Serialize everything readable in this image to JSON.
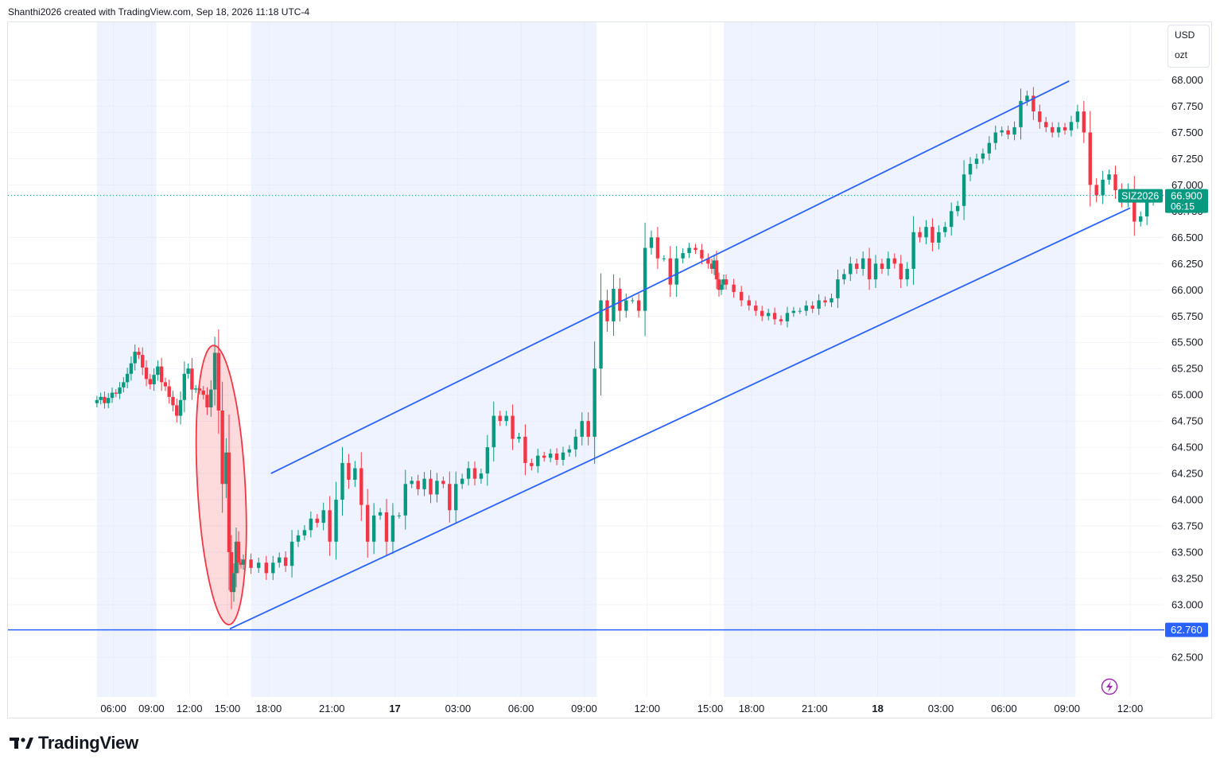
{
  "header": {
    "attribution": "Shanthi2026 created with TradingView.com, Sep 18, 2026 11:18 UTC-4"
  },
  "units": {
    "currency": "USD",
    "unit": "ozt"
  },
  "brand": {
    "name": "TradingView"
  },
  "icons": {
    "logo": "tradingview-logo-icon",
    "lightning": "lightning-icon"
  },
  "colors": {
    "up": "#089981",
    "down": "#f23645",
    "line": "#2962ff",
    "ellipse": "#f23645",
    "session": "#eef3ff"
  },
  "chart_data": {
    "type": "candlestick",
    "symbol": "SIZ2026",
    "last_price": "66.900",
    "countdown": "06:15",
    "y_ticks": [
      "62.500",
      "63.000",
      "63.250",
      "63.500",
      "63.750",
      "64.000",
      "64.250",
      "64.500",
      "64.750",
      "65.000",
      "65.250",
      "65.500",
      "65.750",
      "66.000",
      "66.250",
      "66.500",
      "67.000",
      "67.250",
      "67.500",
      "67.750",
      "68.000"
    ],
    "hidden_tick": "66.750",
    "ylim": [
      62.12,
      68.55
    ],
    "x_ticks": [
      {
        "label": "06:00",
        "t": 6,
        "bold": false
      },
      {
        "label": "09:00",
        "t": 9,
        "bold": false
      },
      {
        "label": "12:00",
        "t": 12,
        "bold": false
      },
      {
        "label": "15:00",
        "t": 15,
        "bold": false
      },
      {
        "label": "18:00",
        "t": 18,
        "bold": false
      },
      {
        "label": "21:00",
        "t": 21,
        "bold": false
      },
      {
        "label": "17",
        "t": 24,
        "bold": true
      },
      {
        "label": "03:00",
        "t": 27,
        "bold": false
      },
      {
        "label": "06:00",
        "t": 30,
        "bold": false
      },
      {
        "label": "09:00",
        "t": 33,
        "bold": false
      },
      {
        "label": "12:00",
        "t": 36,
        "bold": false
      },
      {
        "label": "15:00",
        "t": 39,
        "bold": false
      },
      {
        "label": "18:00",
        "t": 42,
        "bold": false
      },
      {
        "label": "21:00",
        "t": 45,
        "bold": false
      },
      {
        "label": "18",
        "t": 48,
        "bold": true
      },
      {
        "label": "03:00",
        "t": 51,
        "bold": false
      },
      {
        "label": "06:00",
        "t": 54,
        "bold": false
      },
      {
        "label": "09:00",
        "t": 57,
        "bold": false
      },
      {
        "label": "12:00",
        "t": 60,
        "bold": false
      }
    ],
    "x_breaks": [
      {
        "t": 0,
        "x": 47
      },
      {
        "t": 15,
        "x": 286
      },
      {
        "t": 17,
        "x": 306
      },
      {
        "t": 18,
        "x": 338
      },
      {
        "t": 39,
        "x": 893
      },
      {
        "t": 41,
        "x": 913
      },
      {
        "t": 42,
        "x": 945
      },
      {
        "t": 60,
        "x": 1421
      }
    ],
    "sessions": [
      [
        4.7,
        9.4
      ],
      [
        17.3,
        33.6
      ],
      [
        40.7,
        57.4
      ]
    ],
    "horizontal_level": {
      "price": 62.76,
      "label": "62.760"
    },
    "channel": {
      "upper": [
        {
          "t": 18.1,
          "p": 64.25
        },
        {
          "t": 57.1,
          "p": 67.99
        }
      ],
      "lower": [
        {
          "t": 15.3,
          "p": 62.77
        },
        {
          "t": 60.0,
          "p": 66.78
        }
      ]
    },
    "ellipse": {
      "start": {
        "t": 13.9,
        "p": 65.47
      },
      "end": {
        "t": 15.2,
        "p": 62.81
      }
    },
    "closes": [
      {
        "t": 4.7,
        "c": 64.95
      },
      {
        "t": 5.0,
        "c": 64.98
      },
      {
        "t": 5.3,
        "c": 64.92
      },
      {
        "t": 5.6,
        "c": 64.97
      },
      {
        "t": 5.9,
        "c": 65.02
      },
      {
        "t": 6.2,
        "c": 65.01
      },
      {
        "t": 6.5,
        "c": 65.07
      },
      {
        "t": 6.8,
        "c": 65.12
      },
      {
        "t": 7.1,
        "c": 65.2
      },
      {
        "t": 7.4,
        "c": 65.3
      },
      {
        "t": 7.7,
        "c": 65.41
      },
      {
        "t": 8.0,
        "c": 65.38
      },
      {
        "t": 8.3,
        "c": 65.26
      },
      {
        "t": 8.6,
        "c": 65.15
      },
      {
        "t": 8.9,
        "c": 65.1
      },
      {
        "t": 9.2,
        "c": 65.19
      },
      {
        "t": 9.5,
        "c": 65.27
      },
      {
        "t": 9.8,
        "c": 65.12
      },
      {
        "t": 10.1,
        "c": 65.08
      },
      {
        "t": 10.4,
        "c": 64.98
      },
      {
        "t": 10.7,
        "c": 64.9
      },
      {
        "t": 11.0,
        "c": 64.8
      },
      {
        "t": 11.3,
        "c": 64.95
      },
      {
        "t": 11.6,
        "c": 65.2
      },
      {
        "t": 11.9,
        "c": 65.25
      },
      {
        "t": 12.2,
        "c": 65.05
      },
      {
        "t": 12.5,
        "c": 65.06
      },
      {
        "t": 12.8,
        "c": 65.04
      },
      {
        "t": 13.1,
        "c": 65.0
      },
      {
        "t": 13.4,
        "c": 64.88
      },
      {
        "t": 13.7,
        "c": 65.05
      },
      {
        "t": 14.0,
        "c": 65.4
      },
      {
        "t": 14.3,
        "c": 64.85
      },
      {
        "t": 14.6,
        "c": 64.15
      },
      {
        "t": 14.9,
        "c": 64.45
      },
      {
        "t": 15.2,
        "c": 63.5
      },
      {
        "t": 15.5,
        "c": 63.12
      },
      {
        "t": 15.8,
        "c": 63.3
      },
      {
        "t": 16.1,
        "c": 63.6
      },
      {
        "t": 16.4,
        "c": 63.4
      },
      {
        "t": 16.7,
        "c": 63.38
      },
      {
        "t": 17.0,
        "c": 63.43
      },
      {
        "t": 17.3,
        "c": 63.35
      },
      {
        "t": 17.6,
        "c": 63.4
      },
      {
        "t": 17.9,
        "c": 63.3
      },
      {
        "t": 18.2,
        "c": 63.4
      },
      {
        "t": 18.5,
        "c": 63.45
      },
      {
        "t": 18.8,
        "c": 63.37
      },
      {
        "t": 19.1,
        "c": 63.6
      },
      {
        "t": 19.4,
        "c": 63.66
      },
      {
        "t": 19.7,
        "c": 63.71
      },
      {
        "t": 20.0,
        "c": 63.82
      },
      {
        "t": 20.3,
        "c": 63.78
      },
      {
        "t": 20.6,
        "c": 63.9
      },
      {
        "t": 20.9,
        "c": 63.6
      },
      {
        "t": 21.2,
        "c": 64.0
      },
      {
        "t": 21.5,
        "c": 64.35
      },
      {
        "t": 21.8,
        "c": 64.19
      },
      {
        "t": 22.1,
        "c": 64.3
      },
      {
        "t": 22.4,
        "c": 63.95
      },
      {
        "t": 22.7,
        "c": 63.6
      },
      {
        "t": 23.0,
        "c": 63.85
      },
      {
        "t": 23.3,
        "c": 63.88
      },
      {
        "t": 23.6,
        "c": 63.6
      },
      {
        "t": 23.9,
        "c": 63.85
      },
      {
        "t": 24.2,
        "c": 63.85
      },
      {
        "t": 24.5,
        "c": 64.15
      },
      {
        "t": 24.8,
        "c": 64.18
      },
      {
        "t": 25.1,
        "c": 64.1
      },
      {
        "t": 25.4,
        "c": 64.2
      },
      {
        "t": 25.7,
        "c": 64.05
      },
      {
        "t": 26.0,
        "c": 64.18
      },
      {
        "t": 26.3,
        "c": 64.15
      },
      {
        "t": 26.6,
        "c": 63.9
      },
      {
        "t": 26.9,
        "c": 64.15
      },
      {
        "t": 27.2,
        "c": 64.2
      },
      {
        "t": 27.5,
        "c": 64.3
      },
      {
        "t": 27.8,
        "c": 64.2
      },
      {
        "t": 28.1,
        "c": 64.25
      },
      {
        "t": 28.4,
        "c": 64.5
      },
      {
        "t": 28.7,
        "c": 64.8
      },
      {
        "t": 29.0,
        "c": 64.75
      },
      {
        "t": 29.3,
        "c": 64.8
      },
      {
        "t": 29.6,
        "c": 64.58
      },
      {
        "t": 29.9,
        "c": 64.6
      },
      {
        "t": 30.2,
        "c": 64.35
      },
      {
        "t": 30.5,
        "c": 64.32
      },
      {
        "t": 30.8,
        "c": 64.42
      },
      {
        "t": 31.1,
        "c": 64.4
      },
      {
        "t": 31.4,
        "c": 64.44
      },
      {
        "t": 31.7,
        "c": 64.38
      },
      {
        "t": 32.0,
        "c": 64.45
      },
      {
        "t": 32.3,
        "c": 64.48
      },
      {
        "t": 32.6,
        "c": 64.6
      },
      {
        "t": 32.9,
        "c": 64.75
      },
      {
        "t": 33.2,
        "c": 64.6
      },
      {
        "t": 33.5,
        "c": 65.25
      },
      {
        "t": 33.8,
        "c": 65.9
      },
      {
        "t": 34.1,
        "c": 65.7
      },
      {
        "t": 34.4,
        "c": 66.01
      },
      {
        "t": 34.7,
        "c": 65.8
      },
      {
        "t": 35.0,
        "c": 65.9
      },
      {
        "t": 35.3,
        "c": 65.9
      },
      {
        "t": 35.6,
        "c": 65.8
      },
      {
        "t": 35.9,
        "c": 66.4
      },
      {
        "t": 36.2,
        "c": 66.5
      },
      {
        "t": 36.5,
        "c": 66.3
      },
      {
        "t": 36.8,
        "c": 66.3
      },
      {
        "t": 37.1,
        "c": 66.05
      },
      {
        "t": 37.4,
        "c": 66.3
      },
      {
        "t": 37.7,
        "c": 66.35
      },
      {
        "t": 38.0,
        "c": 66.4
      },
      {
        "t": 38.3,
        "c": 66.38
      },
      {
        "t": 38.6,
        "c": 66.3
      },
      {
        "t": 38.9,
        "c": 66.25
      },
      {
        "t": 39.2,
        "c": 66.2
      },
      {
        "t": 39.5,
        "c": 66.28
      },
      {
        "t": 39.8,
        "c": 66.1
      },
      {
        "t": 40.1,
        "c": 66.0
      },
      {
        "t": 40.4,
        "c": 66.05
      },
      {
        "t": 40.7,
        "c": 66.1
      },
      {
        "t": 41.0,
        "c": 66.05
      },
      {
        "t": 41.3,
        "c": 65.98
      },
      {
        "t": 41.6,
        "c": 65.9
      },
      {
        "t": 41.9,
        "c": 65.85
      },
      {
        "t": 42.2,
        "c": 65.8
      },
      {
        "t": 42.5,
        "c": 65.75
      },
      {
        "t": 42.8,
        "c": 65.78
      },
      {
        "t": 43.1,
        "c": 65.72
      },
      {
        "t": 43.4,
        "c": 65.7
      },
      {
        "t": 43.7,
        "c": 65.78
      },
      {
        "t": 44.0,
        "c": 65.8
      },
      {
        "t": 44.3,
        "c": 65.8
      },
      {
        "t": 44.6,
        "c": 65.85
      },
      {
        "t": 44.9,
        "c": 65.82
      },
      {
        "t": 45.2,
        "c": 65.9
      },
      {
        "t": 45.5,
        "c": 65.88
      },
      {
        "t": 45.8,
        "c": 65.92
      },
      {
        "t": 46.1,
        "c": 66.1
      },
      {
        "t": 46.4,
        "c": 66.15
      },
      {
        "t": 46.7,
        "c": 66.25
      },
      {
        "t": 47.0,
        "c": 66.2
      },
      {
        "t": 47.3,
        "c": 66.3
      },
      {
        "t": 47.6,
        "c": 66.1
      },
      {
        "t": 47.9,
        "c": 66.25
      },
      {
        "t": 48.2,
        "c": 66.2
      },
      {
        "t": 48.5,
        "c": 66.3
      },
      {
        "t": 48.8,
        "c": 66.25
      },
      {
        "t": 49.1,
        "c": 66.1
      },
      {
        "t": 49.4,
        "c": 66.2
      },
      {
        "t": 49.7,
        "c": 66.55
      },
      {
        "t": 50.0,
        "c": 66.5
      },
      {
        "t": 50.3,
        "c": 66.6
      },
      {
        "t": 50.6,
        "c": 66.45
      },
      {
        "t": 50.9,
        "c": 66.55
      },
      {
        "t": 51.2,
        "c": 66.6
      },
      {
        "t": 51.5,
        "c": 66.75
      },
      {
        "t": 51.8,
        "c": 66.8
      },
      {
        "t": 52.1,
        "c": 67.1
      },
      {
        "t": 52.4,
        "c": 67.2
      },
      {
        "t": 52.7,
        "c": 67.25
      },
      {
        "t": 53.0,
        "c": 67.3
      },
      {
        "t": 53.3,
        "c": 67.4
      },
      {
        "t": 53.6,
        "c": 67.5
      },
      {
        "t": 53.9,
        "c": 67.52
      },
      {
        "t": 54.2,
        "c": 67.48
      },
      {
        "t": 54.5,
        "c": 67.55
      },
      {
        "t": 54.8,
        "c": 67.8
      },
      {
        "t": 55.1,
        "c": 67.85
      },
      {
        "t": 55.4,
        "c": 67.7
      },
      {
        "t": 55.7,
        "c": 67.6
      },
      {
        "t": 56.0,
        "c": 67.55
      },
      {
        "t": 56.3,
        "c": 67.5
      },
      {
        "t": 56.6,
        "c": 67.55
      },
      {
        "t": 56.9,
        "c": 67.52
      },
      {
        "t": 57.2,
        "c": 67.6
      },
      {
        "t": 57.5,
        "c": 67.7
      },
      {
        "t": 57.8,
        "c": 67.5
      },
      {
        "t": 58.1,
        "c": 67.0
      },
      {
        "t": 58.4,
        "c": 66.9
      },
      {
        "t": 58.7,
        "c": 67.05
      },
      {
        "t": 59.0,
        "c": 67.1
      },
      {
        "t": 59.3,
        "c": 66.95
      },
      {
        "t": 59.6,
        "c": 66.85
      },
      {
        "t": 59.9,
        "c": 66.95
      },
      {
        "t": 60.2,
        "c": 66.65
      },
      {
        "t": 60.5,
        "c": 66.7
      },
      {
        "t": 60.8,
        "c": 66.85
      },
      {
        "t": 61.1,
        "c": 66.9
      }
    ]
  }
}
